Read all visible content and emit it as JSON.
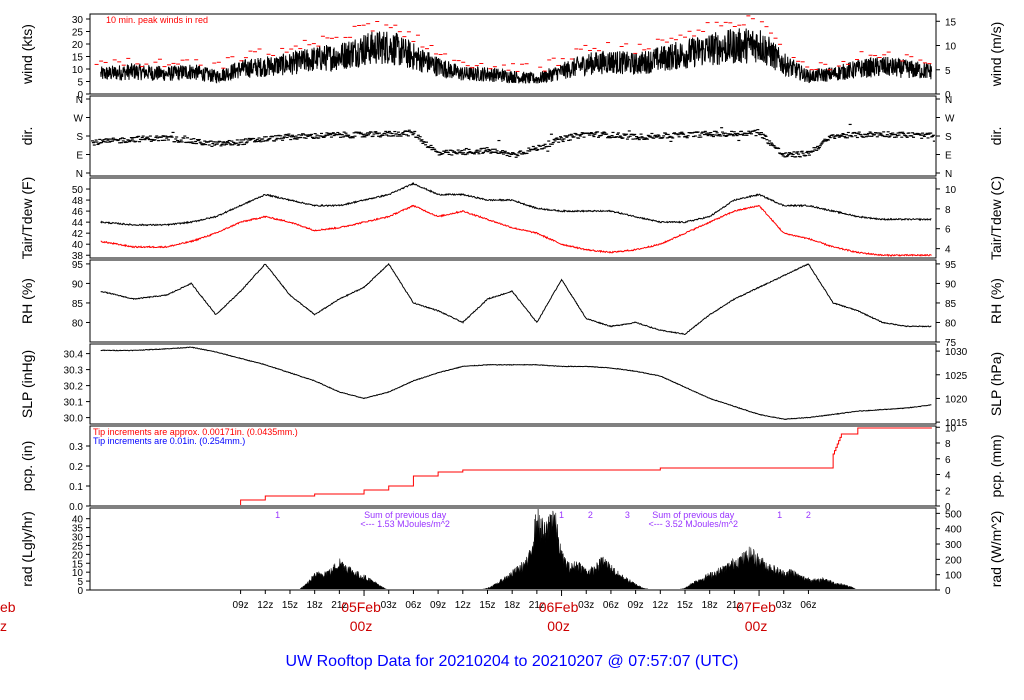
{
  "title": "UW Rooftop Data for 20210204  to  20210207 @ 07:57:07  (UTC)",
  "colors": {
    "main": "#000000",
    "red": "#ff0000",
    "blue": "#0000ff",
    "purple": "#9933ff",
    "title": "#0000ff"
  },
  "x_axis": {
    "ticks": [
      "09z",
      "12z",
      "15z",
      "18z",
      "21z",
      "03z",
      "06z",
      "09z",
      "12z",
      "15z",
      "18z",
      "21z",
      "03z",
      "06z",
      "09z",
      "12z",
      "15z",
      "18z",
      "21z",
      "03z",
      "06z"
    ],
    "day_labels": [
      {
        "date": "05Feb",
        "hour": "00z"
      },
      {
        "date": "06Feb",
        "hour": "00z"
      },
      {
        "date": "07Feb",
        "hour": "00z"
      }
    ],
    "left_clip": {
      "date": "eb",
      "hour": "z"
    }
  },
  "chart_data": [
    {
      "type": "line",
      "ylabel": "wind (kts)",
      "ylabel_right": "wind (m/s)",
      "ylim": [
        0,
        32
      ],
      "yticks": [
        0,
        5,
        10,
        15,
        20,
        25,
        30
      ],
      "ylim_right": [
        0,
        16.5
      ],
      "yticks_right": [
        0,
        5,
        10,
        15
      ],
      "annotations": [
        "10 min. peak winds in red"
      ],
      "series": [
        {
          "color": "#000000",
          "style": "line",
          "x": [
            -8,
            -4,
            0,
            3,
            6,
            9,
            12,
            15,
            18,
            21,
            24,
            27,
            30,
            33,
            36,
            39,
            42,
            45,
            48,
            51,
            54,
            57,
            60,
            63,
            66,
            69,
            72,
            75,
            78,
            81,
            84,
            87,
            90,
            93
          ],
          "values": [
            8,
            9,
            8,
            9,
            7,
            10,
            11,
            12,
            14,
            15,
            18,
            19,
            15,
            11,
            8,
            8,
            7,
            6,
            9,
            12,
            13,
            12,
            14,
            16,
            18,
            19,
            20,
            12,
            7,
            8,
            10,
            11,
            10,
            9
          ]
        },
        {
          "color": "#ff0000",
          "style": "dash",
          "x": [
            -8,
            -4,
            0,
            3,
            6,
            9,
            12,
            15,
            18,
            21,
            24,
            27,
            30,
            33,
            36,
            39,
            42,
            45,
            48,
            51,
            54,
            57,
            60,
            63,
            66,
            69,
            72,
            75,
            78,
            81,
            84,
            87,
            90,
            93
          ],
          "values": [
            11,
            12,
            11,
            12,
            10,
            14,
            16,
            17,
            20,
            22,
            26,
            27,
            22,
            16,
            12,
            11,
            10,
            9,
            13,
            17,
            18,
            17,
            20,
            23,
            26,
            28,
            29,
            17,
            10,
            11,
            14,
            16,
            14,
            13
          ]
        }
      ]
    },
    {
      "type": "scatter",
      "ylabel": "dir.",
      "ylabel_right": "dir.",
      "yticks": [
        "N",
        "E",
        "S",
        "W",
        "N"
      ],
      "ylim": [
        0,
        360
      ],
      "series": [
        {
          "color": "#000000",
          "x": [
            -8,
            -4,
            0,
            3,
            6,
            9,
            12,
            15,
            18,
            21,
            24,
            27,
            30,
            33,
            36,
            39,
            42,
            45,
            48,
            51,
            54,
            57,
            60,
            63,
            66,
            69,
            72,
            75,
            78,
            81,
            84,
            87,
            90,
            93
          ],
          "values": [
            150,
            165,
            170,
            155,
            140,
            150,
            165,
            175,
            180,
            185,
            185,
            190,
            195,
            95,
            100,
            110,
            90,
            120,
            165,
            190,
            185,
            175,
            180,
            185,
            190,
            190,
            200,
            85,
            95,
            180,
            185,
            190,
            185,
            180
          ]
        }
      ]
    },
    {
      "type": "line",
      "ylabel": "Tair/Tdew (F)",
      "ylabel_right": "Tair/Tdew (C)",
      "ylim": [
        37.5,
        52
      ],
      "yticks": [
        38,
        40,
        42,
        44,
        46,
        48,
        50
      ],
      "ylim_right": [
        3.06,
        11.1
      ],
      "yticks_right": [
        4,
        6,
        8,
        10
      ],
      "series": [
        {
          "color": "#000000",
          "x": [
            -8,
            -4,
            0,
            3,
            6,
            9,
            12,
            15,
            18,
            21,
            24,
            27,
            30,
            33,
            36,
            39,
            42,
            45,
            48,
            51,
            54,
            57,
            60,
            63,
            66,
            69,
            72,
            75,
            78,
            81,
            84,
            87,
            90,
            93
          ],
          "values": [
            44,
            43.5,
            43.5,
            44,
            45,
            47,
            49,
            48,
            47,
            47,
            48,
            49,
            51,
            49,
            49,
            48,
            48,
            46.5,
            46,
            46,
            46,
            45,
            44,
            44,
            45,
            48,
            49,
            47,
            47,
            46,
            45,
            44.5,
            44.5,
            44.5
          ]
        },
        {
          "color": "#ff0000",
          "x": [
            -8,
            -4,
            0,
            3,
            6,
            9,
            12,
            15,
            18,
            21,
            24,
            27,
            30,
            33,
            36,
            39,
            42,
            45,
            48,
            51,
            54,
            57,
            60,
            63,
            66,
            69,
            72,
            75,
            78,
            81,
            84,
            87,
            90,
            93
          ],
          "values": [
            40.5,
            39.5,
            39.5,
            40.5,
            42,
            44,
            45,
            44,
            42.5,
            43,
            44,
            45,
            47,
            45,
            46,
            44.5,
            43,
            42,
            40,
            39,
            38.5,
            39,
            40,
            42,
            44,
            46,
            47,
            42,
            41,
            39.5,
            38.5,
            38,
            38,
            38
          ]
        }
      ]
    },
    {
      "type": "line",
      "ylabel": "RH (%)",
      "ylabel_right": "RH (%)",
      "ylim": [
        75,
        96
      ],
      "yticks": [
        80,
        85,
        90,
        95
      ],
      "yticks_right": [
        75,
        80,
        85,
        90,
        95
      ],
      "series": [
        {
          "color": "#000000",
          "x": [
            -8,
            -4,
            0,
            3,
            6,
            9,
            12,
            15,
            18,
            21,
            24,
            27,
            30,
            33,
            36,
            39,
            42,
            45,
            48,
            51,
            54,
            57,
            60,
            63,
            66,
            69,
            72,
            75,
            78,
            81,
            84,
            87,
            90,
            93
          ],
          "values": [
            88,
            86,
            87,
            90,
            82,
            88,
            95,
            87,
            82,
            86,
            89,
            95,
            85,
            83,
            80,
            86,
            88,
            80,
            91,
            81,
            79,
            80,
            78,
            77,
            82,
            86,
            89,
            92,
            95,
            85,
            83,
            80,
            79,
            79
          ]
        }
      ]
    },
    {
      "type": "line",
      "ylabel": "SLP (inHg)",
      "ylabel_right": "SLP (hPa)",
      "ylim": [
        29.96,
        30.46
      ],
      "yticks": [
        30.0,
        30.1,
        30.2,
        30.3,
        30.4
      ],
      "ylim_right": [
        1014.6,
        1031.5
      ],
      "yticks_right": [
        1015,
        1020,
        1025,
        1030
      ],
      "series": [
        {
          "color": "#000000",
          "x": [
            -8,
            -4,
            0,
            3,
            6,
            9,
            12,
            15,
            18,
            21,
            24,
            27,
            30,
            33,
            36,
            39,
            42,
            45,
            48,
            51,
            54,
            57,
            60,
            63,
            66,
            69,
            72,
            75,
            78,
            81,
            84,
            87,
            90,
            93
          ],
          "values": [
            30.42,
            30.42,
            30.43,
            30.44,
            30.41,
            30.37,
            30.33,
            30.28,
            30.23,
            30.16,
            30.12,
            30.16,
            30.23,
            30.28,
            30.32,
            30.33,
            30.33,
            30.33,
            30.32,
            30.32,
            30.31,
            30.29,
            30.26,
            30.19,
            30.12,
            30.07,
            30.02,
            29.99,
            30.0,
            30.02,
            30.04,
            30.05,
            30.06,
            30.08
          ]
        }
      ]
    },
    {
      "type": "line",
      "ylabel": "pcp. (in)",
      "ylabel_right": "pcp. (mm)",
      "ylim": [
        0,
        0.4
      ],
      "yticks": [
        0.0,
        0.1,
        0.2,
        0.3
      ],
      "yticks_right": [
        0,
        2,
        4,
        6,
        8,
        10
      ],
      "ylim_right": [
        0,
        10.16
      ],
      "annotations": [
        {
          "text": "Tip increments are approx. 0.00171in. (0.0435mm.)",
          "color": "#ff0000"
        },
        {
          "text": "Tip increments are 0.01in. (0.254mm.)",
          "color": "#0000ff"
        }
      ],
      "series": [
        {
          "color": "#ff0000",
          "style": "step",
          "x": [
            -8,
            6,
            9,
            12,
            18,
            24,
            27,
            30,
            33,
            36,
            48,
            60,
            66,
            72,
            78,
            81,
            82,
            84,
            93
          ],
          "values": [
            0.0,
            0.0,
            0.03,
            0.05,
            0.06,
            0.08,
            0.1,
            0.15,
            0.17,
            0.18,
            0.18,
            0.19,
            0.19,
            0.19,
            0.19,
            0.26,
            0.36,
            0.39,
            0.39
          ]
        }
      ]
    },
    {
      "type": "area",
      "ylabel": "rad (Lgly/hr)",
      "ylabel_right": "rad (W/m^2)",
      "ylim": [
        0,
        46
      ],
      "yticks": [
        0,
        5,
        10,
        15,
        20,
        25,
        30,
        35,
        40
      ],
      "ylim_right": [
        0,
        535
      ],
      "yticks_right": [
        0,
        100,
        200,
        300,
        400,
        500
      ],
      "markers": [
        "1",
        "1",
        "2",
        "3",
        "1",
        "2"
      ],
      "marker_x": [
        13.5,
        48,
        51.5,
        56,
        74.5,
        78
      ],
      "annotations": [
        {
          "text": "Sum of previous day",
          "x": 29
        },
        {
          "text": "<--- 1.53 MJoules/m^2",
          "x": 29
        },
        {
          "text": "Sum of previous day",
          "x": 64
        },
        {
          "text": "<--- 3.52 MJoules/m^2",
          "x": 64
        }
      ],
      "series": [
        {
          "color": "#000000",
          "x": [
            14,
            16,
            17,
            18,
            19,
            20,
            21,
            22,
            23,
            24,
            25,
            26,
            27,
            38,
            39,
            40,
            41,
            42,
            43,
            44,
            45,
            46,
            47,
            48,
            49,
            50,
            51,
            52,
            53,
            54,
            55,
            57,
            58,
            59,
            62,
            63,
            64,
            66,
            67,
            68,
            69,
            70,
            71,
            72,
            73,
            74,
            75,
            76,
            77,
            78,
            79,
            80,
            81,
            82,
            83,
            84,
            85,
            86
          ],
          "values": [
            0,
            0,
            3,
            8,
            9,
            10,
            15,
            12,
            9,
            7,
            5,
            2,
            0,
            0,
            1,
            3,
            6,
            9,
            12,
            16,
            38,
            30,
            42,
            18,
            12,
            14,
            10,
            11,
            16,
            12,
            8,
            3,
            1,
            0,
            0,
            1,
            4,
            8,
            10,
            12,
            15,
            17,
            20,
            16,
            13,
            11,
            9,
            10,
            7,
            6,
            5,
            6,
            4,
            3,
            2,
            0,
            0,
            0
          ]
        }
      ]
    }
  ]
}
